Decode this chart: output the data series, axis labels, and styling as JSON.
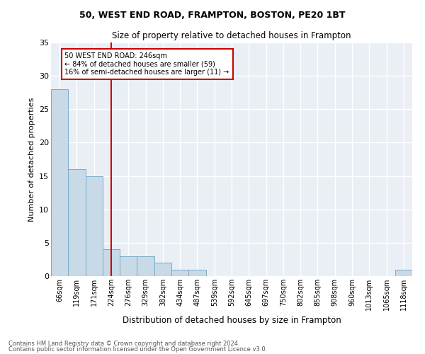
{
  "title1": "50, WEST END ROAD, FRAMPTON, BOSTON, PE20 1BT",
  "title2": "Size of property relative to detached houses in Frampton",
  "xlabel": "Distribution of detached houses by size in Frampton",
  "ylabel": "Number of detached properties",
  "categories": [
    "66sqm",
    "119sqm",
    "171sqm",
    "224sqm",
    "276sqm",
    "329sqm",
    "382sqm",
    "434sqm",
    "487sqm",
    "539sqm",
    "592sqm",
    "645sqm",
    "697sqm",
    "750sqm",
    "802sqm",
    "855sqm",
    "908sqm",
    "960sqm",
    "1013sqm",
    "1065sqm",
    "1118sqm"
  ],
  "values": [
    28,
    16,
    15,
    4,
    3,
    3,
    2,
    1,
    1,
    0,
    0,
    0,
    0,
    0,
    0,
    0,
    0,
    0,
    0,
    0,
    1
  ],
  "bar_color": "#c8d9e8",
  "bar_edge_color": "#7aaac8",
  "vline_x_index": 3,
  "vline_color": "#cc0000",
  "annotation_text": "50 WEST END ROAD: 246sqm\n← 84% of detached houses are smaller (59)\n16% of semi-detached houses are larger (11) →",
  "annotation_box_color": "#cc0000",
  "ylim": [
    0,
    35
  ],
  "yticks": [
    0,
    5,
    10,
    15,
    20,
    25,
    30,
    35
  ],
  "background_color": "#eaeff5",
  "grid_color": "#ffffff",
  "footer1": "Contains HM Land Registry data © Crown copyright and database right 2024.",
  "footer2": "Contains public sector information licensed under the Open Government Licence v3.0."
}
